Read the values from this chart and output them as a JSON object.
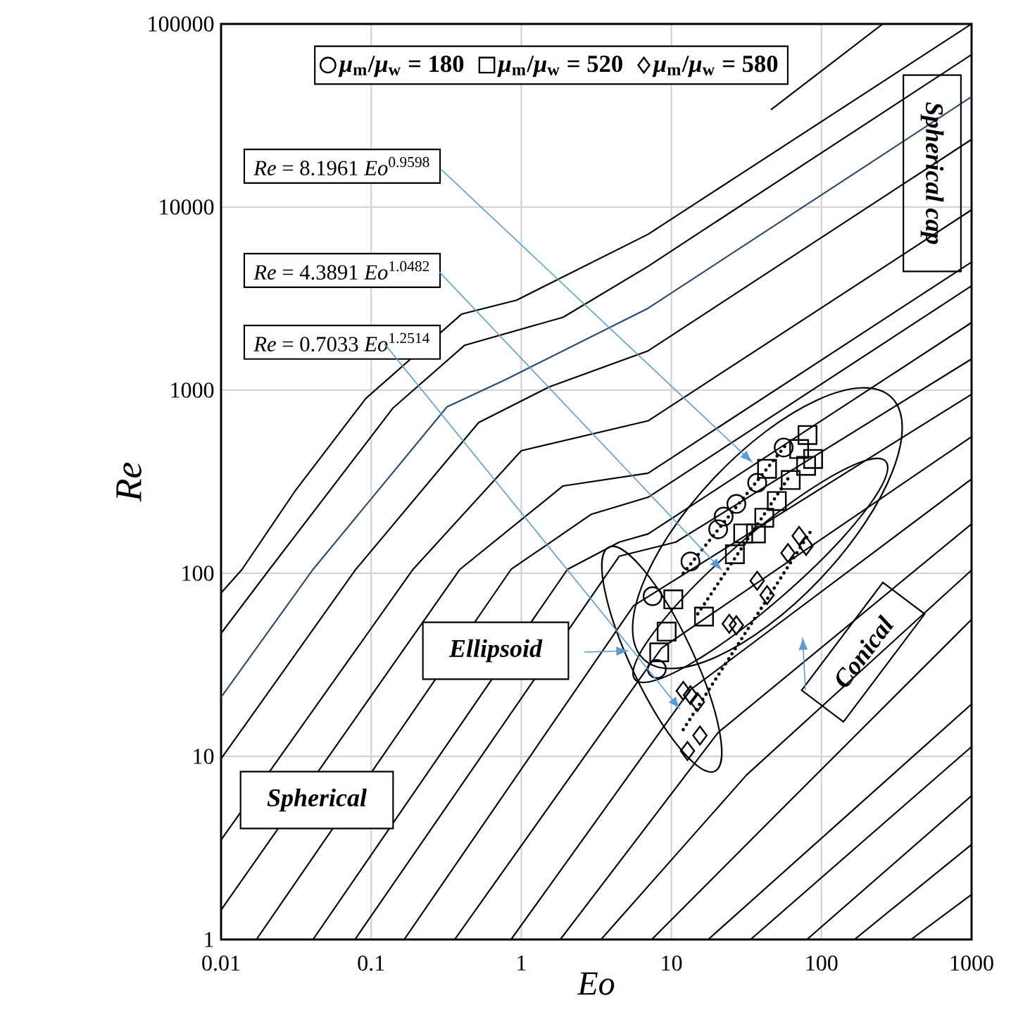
{
  "chart_data": {
    "type": "scatter",
    "xlabel": "Eo",
    "ylabel": "Re",
    "log": "xy",
    "grid": true,
    "legend": "top",
    "xlim": [
      0.01,
      1000
    ],
    "ylim": [
      1,
      100000
    ],
    "xticks": [
      0.01,
      0.1,
      1,
      10,
      100,
      1000
    ],
    "yticks": [
      1,
      10,
      100,
      1000,
      10000,
      100000
    ],
    "series": [
      {
        "type": "line",
        "color": "#000000",
        "x": [
          0.01,
          0.0138,
          0.031,
          0.092,
          0.4,
          0.93,
          7,
          1000
        ],
        "values": [
          78,
          105,
          280,
          900,
          2600,
          3100,
          7100,
          100000
        ]
      },
      {
        "type": "line",
        "color": "#000000",
        "x": [
          46,
          256
        ],
        "values": [
          34000,
          100000
        ]
      },
      {
        "type": "line",
        "color": "#000000",
        "x": [
          0.01,
          0.021,
          0.14,
          0.42,
          1.9,
          7,
          1000
        ],
        "values": [
          47,
          105,
          800,
          1760,
          2500,
          4750,
          68000
        ]
      },
      {
        "type": "line",
        "color": "#2e4a6b",
        "x": [
          0.01,
          0.041,
          0.32,
          0.8,
          7,
          1000
        ],
        "values": [
          21,
          105,
          810,
          1150,
          2800,
          40000
        ]
      },
      {
        "type": "line",
        "color": "#000000",
        "x": [
          0.01,
          0.079,
          0.52,
          1.53,
          7,
          1000
        ],
        "values": [
          9.7,
          105,
          665,
          1040,
          1640,
          23400
        ]
      },
      {
        "type": "line",
        "color": "#000000",
        "x": [
          0.01,
          0.19,
          1,
          7,
          1000
        ],
        "values": [
          3.5,
          105,
          467,
          680,
          9650
        ]
      },
      {
        "type": "line",
        "color": "#000000",
        "x": [
          0.01,
          0.39,
          1.9,
          7,
          1000
        ],
        "values": [
          1.45,
          105,
          300,
          352,
          5010
        ]
      },
      {
        "type": "line",
        "color": "#000000",
        "x": [
          0.0172,
          0.855,
          2.93,
          7,
          1000
        ],
        "values": [
          1,
          105,
          210,
          260,
          3710
        ]
      },
      {
        "type": "line",
        "color": "#000000",
        "x": [
          0.041,
          2.03,
          4.5,
          7,
          1000
        ],
        "values": [
          1,
          105,
          148,
          164,
          2340
        ]
      },
      {
        "type": "line",
        "color": "#000000",
        "x": [
          0.078,
          4.5,
          10.7,
          1000
        ],
        "values": [
          1,
          124,
          148,
          1480
        ]
      },
      {
        "type": "line",
        "color": "#000000",
        "x": [
          0.166,
          5.6,
          1000
        ],
        "values": [
          1,
          66.5,
          950
        ]
      },
      {
        "type": "line",
        "color": "#000000",
        "x": [
          0.36,
          8.6,
          1000
        ],
        "values": [
          1,
          39,
          557
        ]
      },
      {
        "type": "line",
        "color": "#000000",
        "x": [
          0.855,
          13.3,
          1000
        ],
        "values": [
          1,
          23,
          327
        ]
      },
      {
        "type": "line",
        "color": "#000000",
        "x": [
          1.82,
          20.5,
          1000
        ],
        "values": [
          1,
          13.5,
          186
        ]
      },
      {
        "type": "line",
        "color": "#000000",
        "x": [
          3.4,
          31.6,
          1000
        ],
        "values": [
          1,
          7.9,
          104
        ]
      },
      {
        "type": "line",
        "color": "#000000",
        "x": [
          7.4,
          48.6,
          1000
        ],
        "values": [
          1,
          4.7,
          56
        ]
      },
      {
        "type": "line",
        "color": "#000000",
        "x": [
          17.6,
          1000
        ],
        "values": [
          1,
          19.3
        ]
      },
      {
        "type": "line",
        "color": "#000000",
        "x": [
          33.7,
          1000
        ],
        "values": [
          1,
          11.3
        ]
      },
      {
        "type": "line",
        "color": "#000000",
        "x": [
          80,
          1000
        ],
        "values": [
          1,
          6.1
        ]
      },
      {
        "type": "line",
        "color": "#000000",
        "x": [
          166,
          1000
        ],
        "values": [
          1,
          3.3
        ]
      },
      {
        "type": "line",
        "color": "#000000",
        "x": [
          395,
          1000
        ],
        "values": [
          1,
          1.76
        ]
      },
      {
        "type": "line",
        "color": "#000000",
        "line_style": "dotted",
        "x": [
          12,
          60
        ],
        "values": [
          100,
          520
        ]
      },
      {
        "type": "line",
        "color": "#000000",
        "line_style": "dotted",
        "x": [
          15,
          60
        ],
        "values": [
          60,
          330
        ]
      },
      {
        "type": "line",
        "color": "#000000",
        "line_style": "dotted",
        "x": [
          12,
          85
        ],
        "values": [
          14,
          170
        ]
      },
      {
        "marker": "circle",
        "color": "#000000",
        "name": "*μ*$_{m}$/*μ*$_{w}$ = 180",
        "x": [
          7.5,
          8.0,
          13.4,
          20.5,
          22.3,
          27.1,
          37.3,
          56
        ],
        "values": [
          75,
          30,
          116,
          174,
          204,
          239,
          312,
          486
        ]
      },
      {
        "marker": "square",
        "color": "#000000",
        "name": "*μ*$_{m}$/*μ*$_{w}$ = 520",
        "x": [
          80.7,
          43.4,
          88,
          62.4,
          50.4,
          41.6,
          36.6,
          30.1,
          26.5,
          10.3,
          16.5,
          9.3,
          8.3,
          71,
          79
        ],
        "values": [
          569,
          372,
          421,
          323,
          248,
          201,
          165,
          165,
          127,
          72,
          58,
          48,
          37,
          477,
          386
        ]
      },
      {
        "marker": "diamond",
        "color": "#000000",
        "name": "*μ*$_{m}$/*μ*$_{w}$ = 580",
        "x": [
          71,
          79,
          59.8,
          37.3,
          43.4,
          27.1,
          24.3,
          13.4,
          14.9,
          15.5,
          12.8,
          12
        ],
        "values": [
          160,
          141,
          129,
          91,
          76,
          52,
          53,
          21.6,
          19.8,
          13,
          10.7,
          22.8
        ]
      }
    ],
    "annotations": [
      {
        "text": "*Re* = 8.1961 *Eo*$^{0.9598}$",
        "x": 35,
        "y": 400
      },
      {
        "text": "*Re* = 4.3891 *Eo*$^{1.0482}$",
        "x": 21.9,
        "y": 103
      },
      {
        "text": "*Re* = 0.7033 *Eo*$^{1.2514}$",
        "x": 11.5,
        "y": 18
      },
      "Ellipsoid",
      "Conical",
      "Spherical",
      "Spherical cap"
    ]
  }
}
